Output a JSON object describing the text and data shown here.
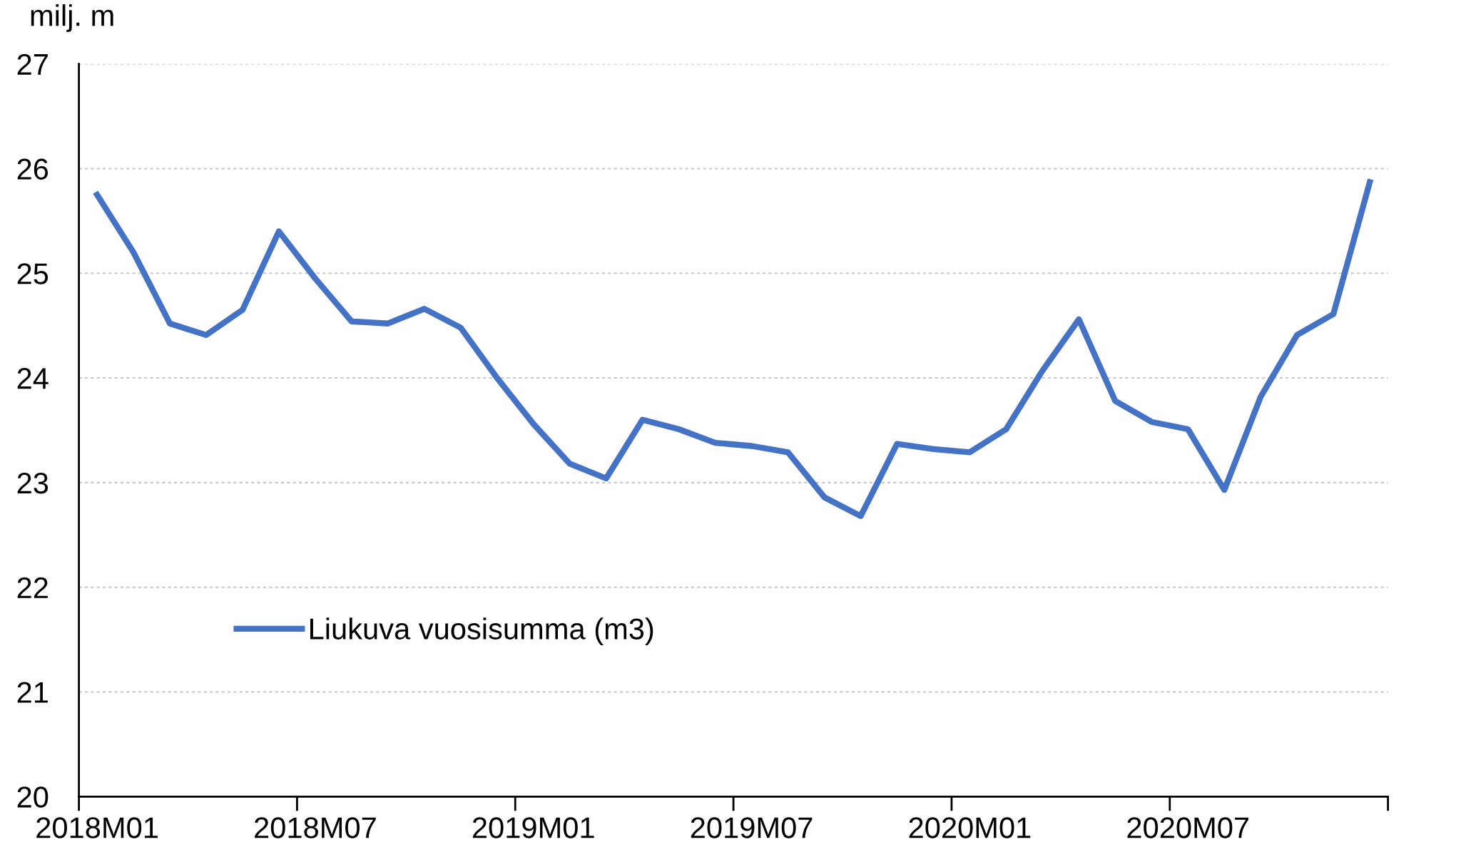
{
  "chart_data": {
    "type": "line",
    "ylabel": "milj. m",
    "categories": [
      "2018M01",
      null,
      null,
      null,
      null,
      null,
      "2018M07",
      null,
      null,
      null,
      null,
      null,
      "2019M01",
      null,
      null,
      null,
      null,
      null,
      "2019M07",
      null,
      null,
      null,
      null,
      null,
      "2020M01",
      null,
      null,
      null,
      null,
      null,
      "2020M07",
      null,
      null,
      null,
      null,
      null
    ],
    "series": [
      {
        "name": "Liukuva vuosisumma (m3)",
        "color": "#4472c4",
        "values": [
          25.75,
          25.2,
          24.52,
          24.41,
          24.65,
          25.4,
          24.95,
          24.54,
          24.52,
          24.66,
          24.48,
          24.0,
          23.56,
          23.18,
          23.04,
          23.6,
          23.51,
          23.38,
          23.35,
          23.29,
          22.86,
          22.68,
          23.37,
          23.32,
          23.29,
          23.51,
          24.07,
          24.56,
          23.78,
          23.58,
          23.51,
          22.93,
          23.82,
          24.41,
          24.61,
          25.87
        ]
      }
    ],
    "ylim": [
      20,
      27
    ],
    "yticks": [
      20,
      21,
      22,
      23,
      24,
      25,
      26,
      27
    ],
    "grid": "y",
    "legend": "bottom left",
    "marker": "none",
    "line_style": "solid"
  }
}
